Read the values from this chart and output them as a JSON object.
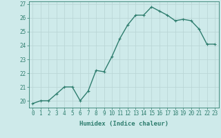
{
  "x": [
    0,
    1,
    2,
    3,
    4,
    5,
    6,
    7,
    8,
    9,
    10,
    11,
    12,
    13,
    14,
    15,
    16,
    17,
    18,
    19,
    20,
    21,
    22,
    23
  ],
  "y": [
    19.8,
    20.0,
    20.0,
    20.5,
    21.0,
    21.0,
    20.0,
    20.7,
    22.2,
    22.1,
    23.2,
    24.5,
    25.5,
    26.2,
    26.2,
    26.8,
    26.5,
    26.2,
    25.8,
    25.9,
    25.8,
    25.2,
    24.1,
    24.1
  ],
  "line_color": "#2e7d6e",
  "marker": "+",
  "marker_color": "#2e7d6e",
  "bg_color": "#ceeaea",
  "grid_color": "#b8d4d4",
  "xlabel": "Humidex (Indice chaleur)",
  "xlim": [
    -0.5,
    23.5
  ],
  "ylim": [
    19.5,
    27.2
  ],
  "yticks": [
    20,
    21,
    22,
    23,
    24,
    25,
    26,
    27
  ],
  "xticks": [
    0,
    1,
    2,
    3,
    4,
    5,
    6,
    7,
    8,
    9,
    10,
    11,
    12,
    13,
    14,
    15,
    16,
    17,
    18,
    19,
    20,
    21,
    22,
    23
  ],
  "axis_color": "#2e7d6e",
  "tick_color": "#2e7d6e",
  "xlabel_color": "#2e7d6e",
  "label_fontsize": 6.5,
  "tick_fontsize": 5.5,
  "line_width": 1.0,
  "marker_size": 3.5
}
